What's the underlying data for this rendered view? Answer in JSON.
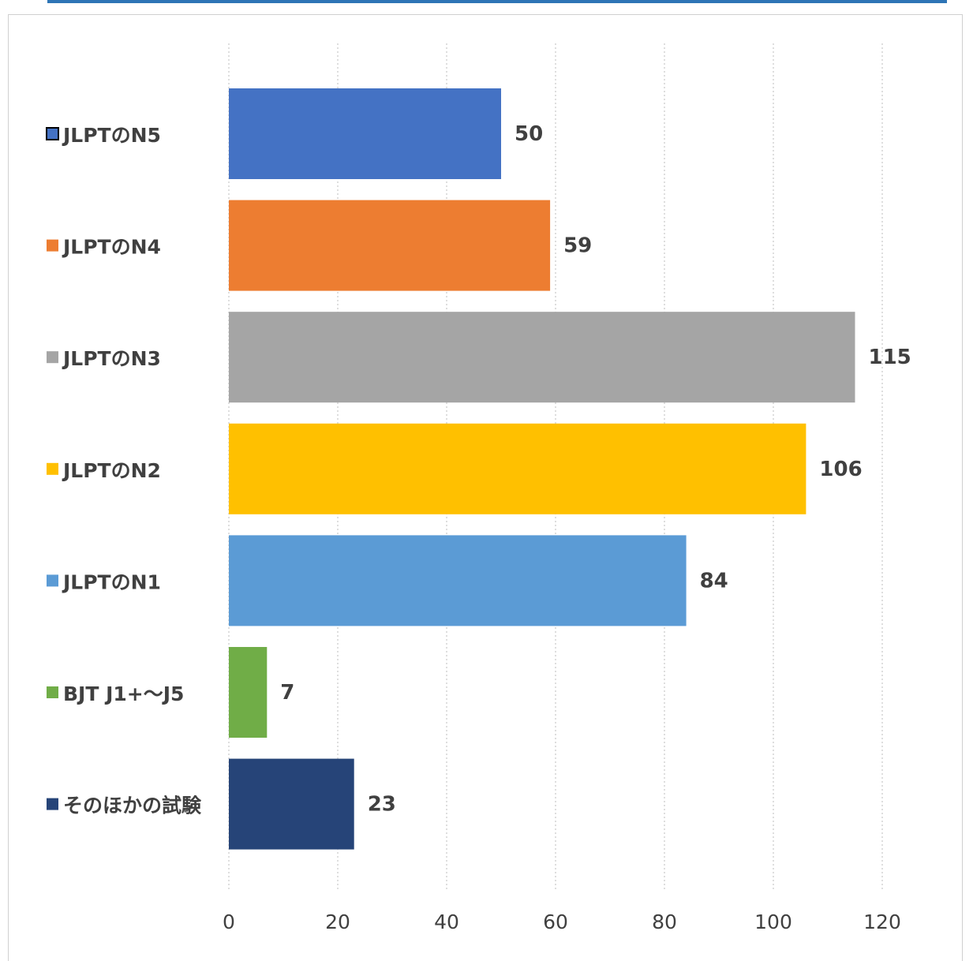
{
  "chart_data": {
    "type": "bar",
    "orientation": "horizontal",
    "categories": [
      "JLPTのN5",
      "JLPTのN4",
      "JLPTのN3",
      "JLPTのN2",
      "JLPTのN1",
      "BJT J1+〜J5",
      "そのほかの試験"
    ],
    "values": [
      50,
      59,
      115,
      106,
      84,
      7,
      23
    ],
    "colors": [
      "#4472c4",
      "#ed7d31",
      "#a5a5a5",
      "#ffc000",
      "#5b9bd5",
      "#70ad47",
      "#264478"
    ],
    "xlim": [
      0,
      120
    ],
    "xticks": [
      0,
      20,
      40,
      60,
      80,
      100,
      120
    ],
    "tick_labels": [
      "0",
      "20",
      "40",
      "60",
      "80",
      "100",
      "120"
    ],
    "grid": "vertical-dotted",
    "data_labels": true
  }
}
